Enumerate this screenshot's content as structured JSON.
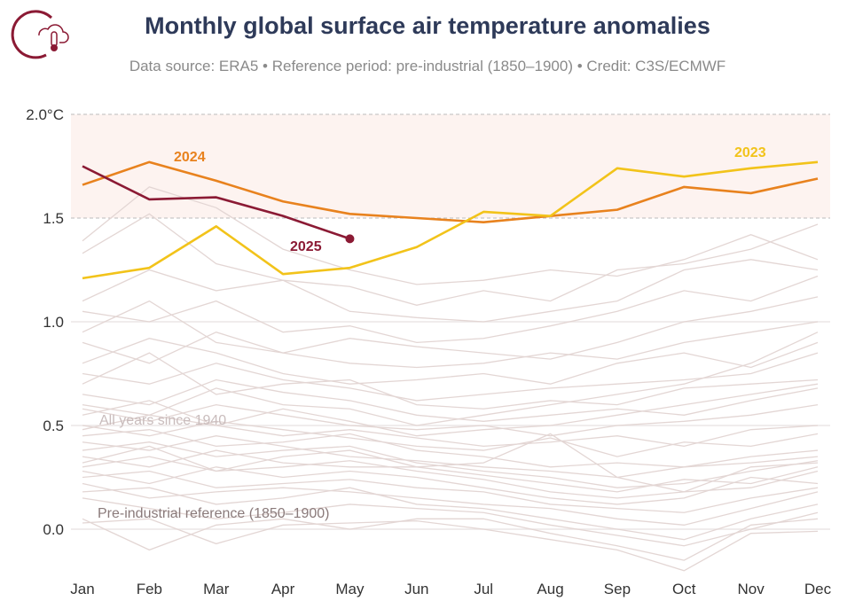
{
  "header": {
    "title": "Monthly global surface air temperature anomalies",
    "subtitle": "Data source: ERA5 • Reference period: pre-industrial (1850–1900) • Credit: C3S/ECMWF",
    "logo_icon": "cloud-thermometer-icon"
  },
  "chart_data": {
    "type": "line",
    "title": "Monthly global surface air temperature anomalies",
    "xlabel": "",
    "ylabel": "",
    "categories": [
      "Jan",
      "Feb",
      "Mar",
      "Apr",
      "May",
      "Jun",
      "Jul",
      "Aug",
      "Sep",
      "Oct",
      "Nov",
      "Dec"
    ],
    "ylim": [
      -0.2,
      2.0
    ],
    "yticks": [
      0.0,
      0.5,
      1.0,
      1.5,
      2.0
    ],
    "ytick_labels": [
      "0.0",
      "0.5",
      "1.0",
      "1.5",
      "2.0°C"
    ],
    "grid": true,
    "shaded_band": [
      1.5,
      2.0
    ],
    "annotations": {
      "background": "All years since 1940",
      "baseline": "Pre-industrial reference (1850–1900)"
    },
    "highlight_series": [
      {
        "name": "2024",
        "color": "#e8821e",
        "values": [
          1.66,
          1.77,
          1.68,
          1.58,
          1.52,
          1.5,
          1.48,
          1.51,
          1.54,
          1.65,
          1.62,
          1.69
        ]
      },
      {
        "name": "2023",
        "color": "#f2c31a",
        "values": [
          1.21,
          1.26,
          1.46,
          1.23,
          1.26,
          1.36,
          1.53,
          1.51,
          1.74,
          1.7,
          1.74,
          1.77
        ]
      },
      {
        "name": "2025",
        "color": "#8b1a34",
        "values": [
          1.75,
          1.59,
          1.6,
          1.51,
          1.4
        ]
      }
    ],
    "background_color": "#e3d6d4",
    "background_series": [
      [
        1.39,
        1.65,
        1.55,
        1.35,
        1.25,
        1.18,
        1.2,
        1.25,
        1.22,
        1.3,
        1.42,
        1.3
      ],
      [
        1.33,
        1.52,
        1.28,
        1.2,
        1.17,
        1.08,
        1.15,
        1.1,
        1.25,
        1.28,
        1.35,
        1.47
      ],
      [
        1.1,
        1.25,
        1.15,
        1.2,
        1.05,
        1.02,
        1.0,
        1.05,
        1.1,
        1.25,
        1.3,
        1.25
      ],
      [
        1.05,
        1.0,
        1.1,
        0.95,
        0.98,
        0.9,
        0.92,
        0.98,
        1.05,
        1.15,
        1.1,
        1.22
      ],
      [
        0.95,
        1.1,
        0.9,
        0.85,
        0.92,
        0.88,
        0.85,
        0.82,
        0.9,
        1.0,
        1.05,
        1.12
      ],
      [
        0.9,
        0.8,
        0.95,
        0.85,
        0.8,
        0.78,
        0.8,
        0.85,
        0.82,
        0.9,
        0.95,
        1.0
      ],
      [
        0.8,
        0.92,
        0.85,
        0.75,
        0.7,
        0.72,
        0.75,
        0.7,
        0.8,
        0.85,
        0.78,
        0.9
      ],
      [
        0.75,
        0.7,
        0.8,
        0.72,
        0.68,
        0.62,
        0.65,
        0.68,
        0.7,
        0.72,
        0.75,
        0.85
      ],
      [
        0.7,
        0.85,
        0.65,
        0.7,
        0.72,
        0.6,
        0.58,
        0.62,
        0.6,
        0.68,
        0.7,
        0.72
      ],
      [
        0.65,
        0.6,
        0.72,
        0.66,
        0.62,
        0.55,
        0.52,
        0.55,
        0.58,
        0.55,
        0.62,
        0.68
      ],
      [
        0.58,
        0.52,
        0.6,
        0.55,
        0.5,
        0.48,
        0.5,
        0.45,
        0.5,
        0.52,
        0.55,
        0.6
      ],
      [
        0.55,
        0.62,
        0.5,
        0.45,
        0.48,
        0.44,
        0.4,
        0.42,
        0.45,
        0.4,
        0.48,
        0.5
      ],
      [
        0.5,
        0.45,
        0.52,
        0.48,
        0.44,
        0.4,
        0.38,
        0.44,
        0.35,
        0.42,
        0.4,
        0.46
      ],
      [
        0.45,
        0.48,
        0.4,
        0.42,
        0.46,
        0.38,
        0.35,
        0.3,
        0.32,
        0.3,
        0.35,
        0.38
      ],
      [
        0.42,
        0.38,
        0.45,
        0.4,
        0.35,
        0.33,
        0.3,
        0.28,
        0.25,
        0.3,
        0.32,
        0.35
      ],
      [
        0.38,
        0.42,
        0.35,
        0.38,
        0.4,
        0.32,
        0.28,
        0.25,
        0.2,
        0.22,
        0.28,
        0.33
      ],
      [
        0.35,
        0.3,
        0.38,
        0.32,
        0.3,
        0.3,
        0.26,
        0.22,
        0.18,
        0.24,
        0.22,
        0.3
      ],
      [
        0.3,
        0.35,
        0.28,
        0.3,
        0.33,
        0.28,
        0.24,
        0.18,
        0.15,
        0.18,
        0.2,
        0.28
      ],
      [
        0.28,
        0.22,
        0.3,
        0.25,
        0.28,
        0.25,
        0.2,
        0.15,
        0.12,
        0.15,
        0.25,
        0.22
      ],
      [
        0.25,
        0.28,
        0.2,
        0.22,
        0.24,
        0.2,
        0.18,
        0.12,
        0.1,
        0.08,
        0.15,
        0.2
      ],
      [
        0.22,
        0.15,
        0.18,
        0.2,
        0.18,
        0.15,
        0.12,
        0.1,
        0.05,
        0.02,
        0.1,
        0.18
      ],
      [
        0.18,
        0.2,
        0.12,
        0.15,
        0.2,
        0.12,
        0.1,
        0.05,
        0.0,
        -0.05,
        0.05,
        0.12
      ],
      [
        0.15,
        0.1,
        0.05,
        0.08,
        0.12,
        0.1,
        0.08,
        0.02,
        -0.03,
        -0.08,
        0.0,
        0.08
      ],
      [
        0.05,
        -0.1,
        0.02,
        0.05,
        0.0,
        0.05,
        0.05,
        -0.02,
        -0.08,
        -0.15,
        0.02,
        0.05
      ],
      [
        0.03,
        0.05,
        -0.07,
        0.02,
        0.03,
        0.04,
        0.0,
        -0.05,
        -0.1,
        -0.2,
        -0.02,
        -0.01
      ],
      [
        0.48,
        0.55,
        0.5,
        0.58,
        0.52,
        0.45,
        0.48,
        0.5,
        0.55,
        0.6,
        0.65,
        0.7
      ],
      [
        0.6,
        0.55,
        0.68,
        0.6,
        0.58,
        0.5,
        0.55,
        0.6,
        0.65,
        0.7,
        0.8,
        0.95
      ],
      [
        0.32,
        0.4,
        0.28,
        0.35,
        0.38,
        0.3,
        0.32,
        0.46,
        0.25,
        0.18,
        0.3,
        0.32
      ]
    ]
  }
}
